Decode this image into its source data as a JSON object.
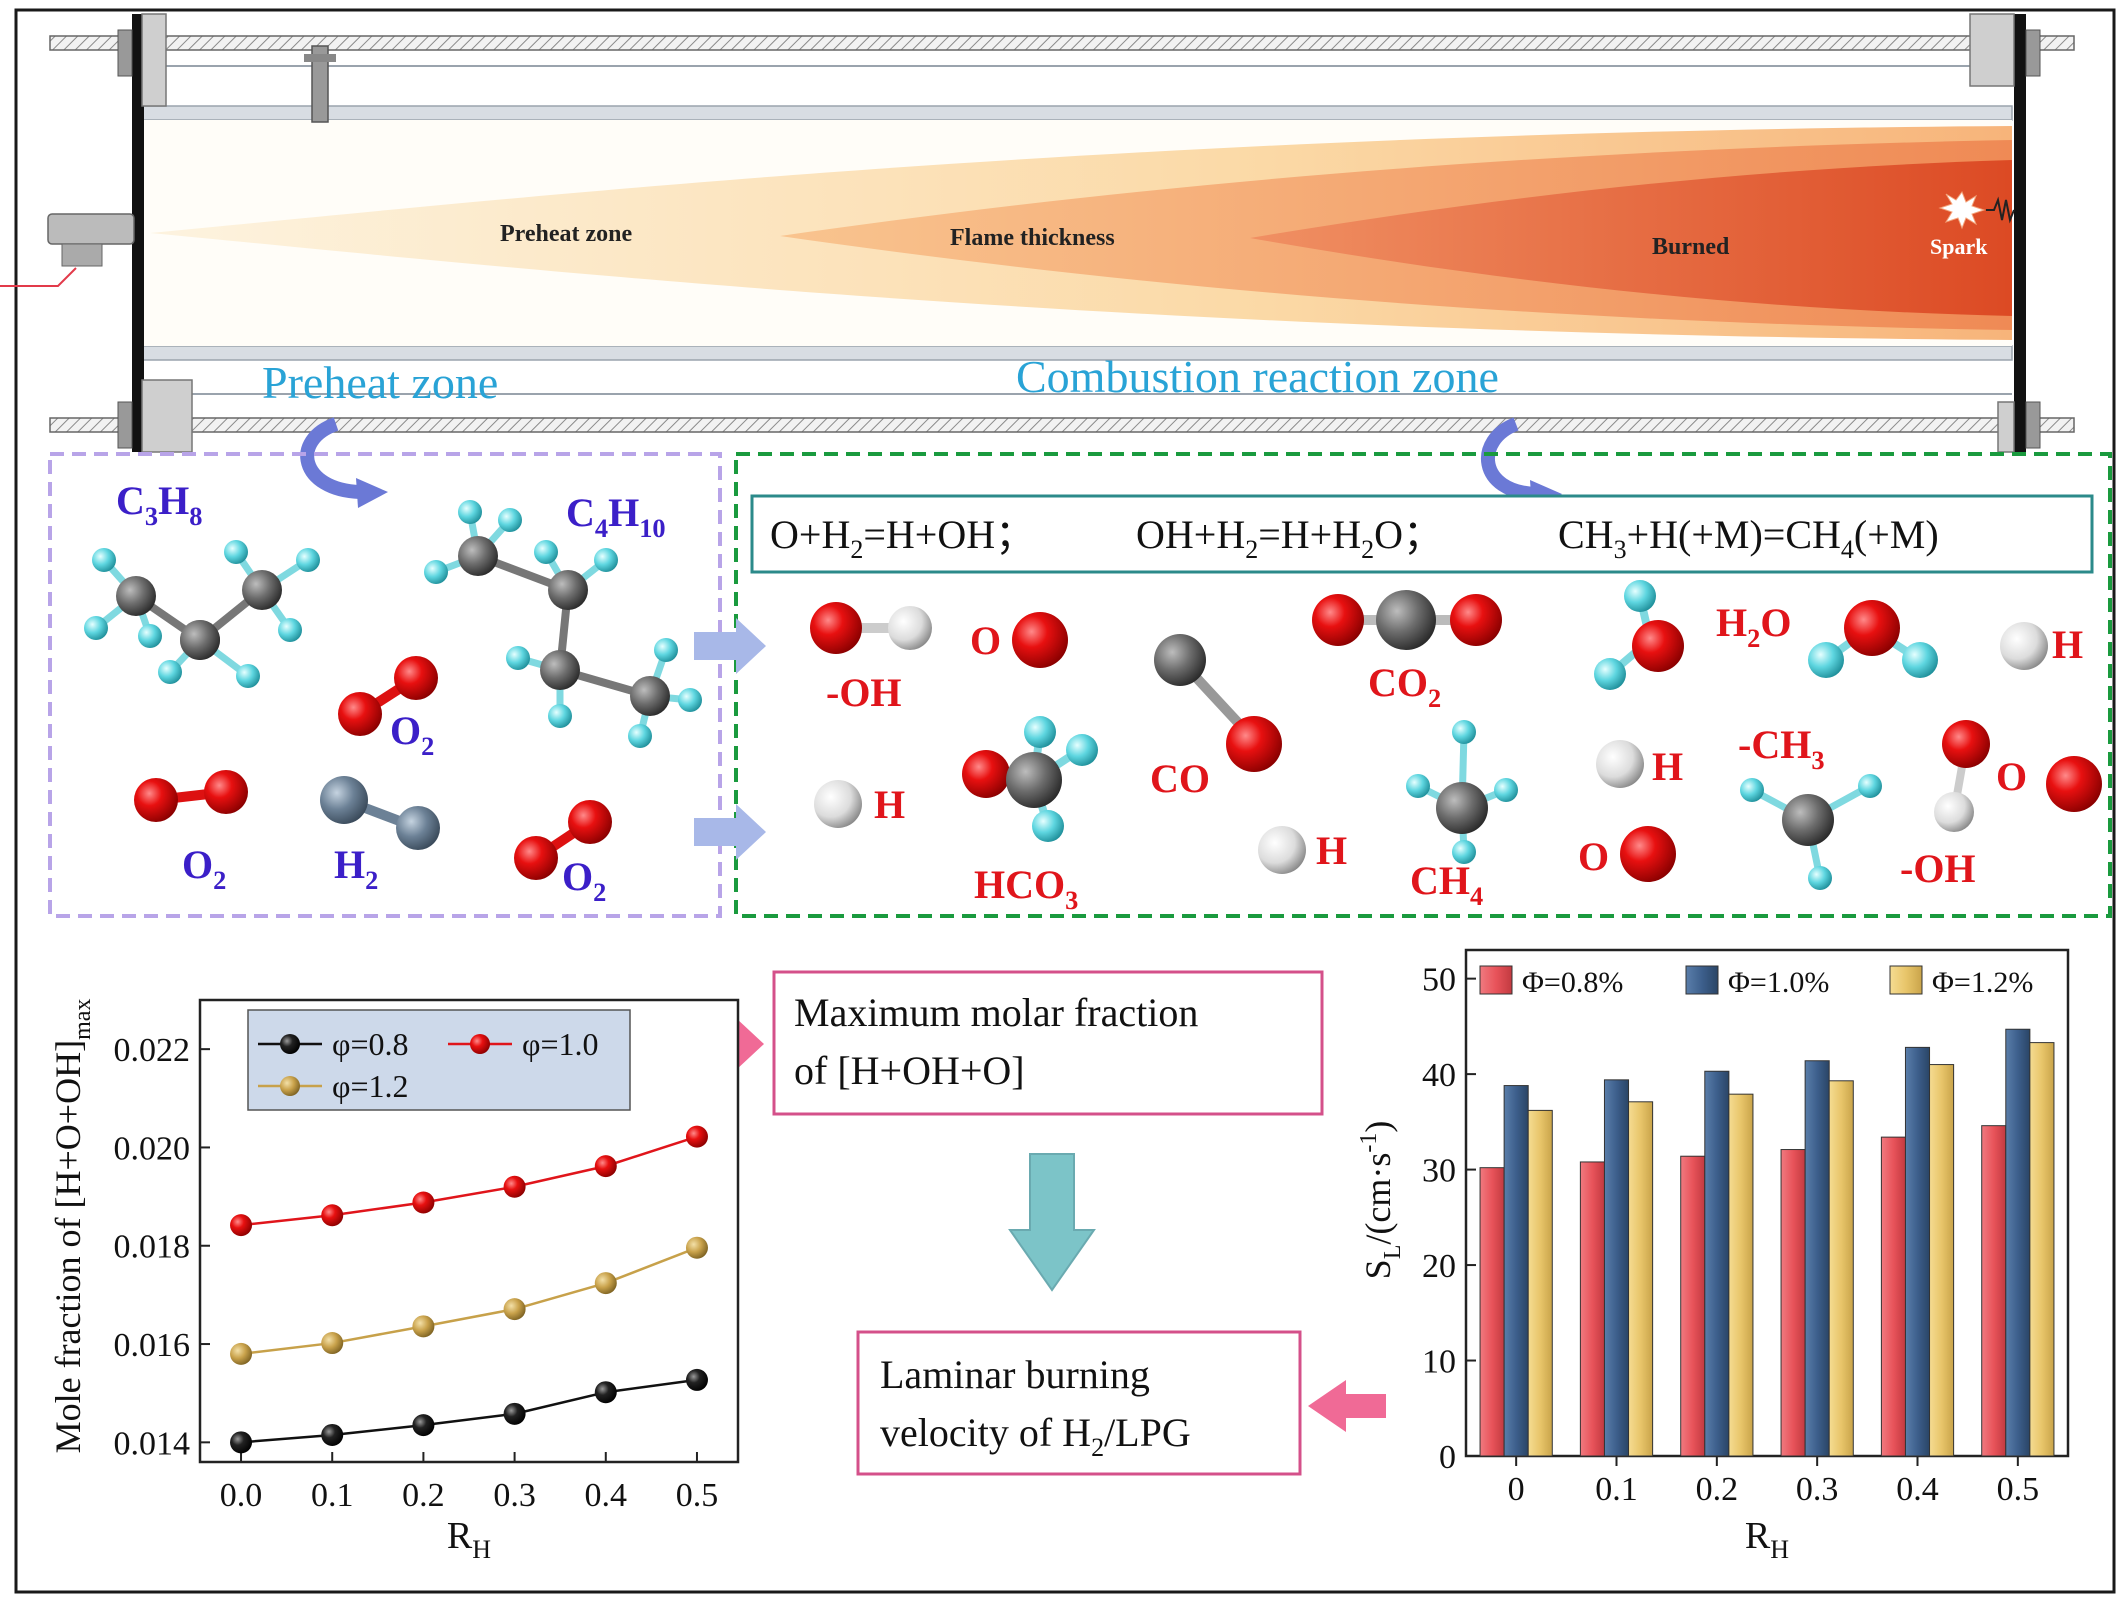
{
  "tube": {
    "preheat_label": "Preheat zone",
    "thickness_label": "Flame thickness",
    "burned_label": "Burned",
    "spark_label": "Spark"
  },
  "zones": {
    "preheat_title": "Preheat zone",
    "combustion_title": "Combustion reaction zone"
  },
  "reactions": {
    "r1": {
      "a": "O+H",
      "a_sub": "2",
      "b": "=H+OH；"
    },
    "r2": {
      "a": "OH+H",
      "a_sub": "2",
      "b": "=H+H",
      "b_sub": "2",
      "c": "O；"
    },
    "r3": {
      "a": "CH",
      "a_sub": "3",
      "b": "+H(+M)=CH",
      "b_sub": "4",
      "c": "(+M)"
    }
  },
  "species_left": [
    {
      "main": "C",
      "parts": [
        [
          "C",
          ""
        ],
        [
          "3",
          "sub"
        ],
        [
          "H",
          ""
        ],
        [
          "8",
          "sub"
        ]
      ]
    },
    {
      "parts": [
        [
          "C",
          ""
        ],
        [
          "4",
          "sub"
        ],
        [
          "H",
          ""
        ],
        [
          "10",
          "sub"
        ]
      ]
    },
    {
      "parts": [
        [
          "O",
          ""
        ],
        [
          "2",
          "sub"
        ]
      ]
    },
    {
      "parts": [
        [
          "O",
          ""
        ],
        [
          "2",
          "sub"
        ]
      ]
    },
    {
      "parts": [
        [
          "H",
          ""
        ],
        [
          "2",
          "sub"
        ]
      ]
    },
    {
      "parts": [
        [
          "O",
          ""
        ],
        [
          "2",
          "sub"
        ]
      ]
    }
  ],
  "species_right": [
    {
      "parts": [
        [
          "-OH",
          ""
        ]
      ]
    },
    {
      "parts": [
        [
          "O",
          ""
        ]
      ]
    },
    {
      "parts": [
        [
          "CO",
          ""
        ],
        [
          "2",
          "sub"
        ]
      ]
    },
    {
      "parts": [
        [
          "H",
          ""
        ],
        [
          "2",
          "sub"
        ],
        [
          "O",
          ""
        ]
      ]
    },
    {
      "parts": [
        [
          "H",
          ""
        ]
      ]
    },
    {
      "parts": [
        [
          "H",
          ""
        ]
      ]
    },
    {
      "parts": [
        [
          "HCO",
          ""
        ],
        [
          "3",
          "sub"
        ]
      ]
    },
    {
      "parts": [
        [
          "CO",
          ""
        ]
      ]
    },
    {
      "parts": [
        [
          "H",
          ""
        ]
      ]
    },
    {
      "parts": [
        [
          "CH",
          ""
        ],
        [
          "4",
          "sub"
        ]
      ]
    },
    {
      "parts": [
        [
          "H",
          ""
        ]
      ]
    },
    {
      "parts": [
        [
          "O",
          ""
        ]
      ]
    },
    {
      "parts": [
        [
          "-CH",
          ""
        ],
        [
          "3",
          "sub"
        ]
      ]
    },
    {
      "parts": [
        [
          "O",
          ""
        ]
      ]
    },
    {
      "parts": [
        [
          "-OH",
          ""
        ]
      ]
    }
  ],
  "flow_boxes": {
    "max_fraction": {
      "line1": "Maximum molar fraction",
      "line2": "of [H+OH+O]"
    },
    "laminar": {
      "line1": "Laminar burning",
      "line2a": "velocity of H",
      "line2_sub": "2",
      "line2b": "/LPG"
    }
  },
  "colors": {
    "species_red": "#e0151b",
    "species_blue": "#3b1fc8",
    "zone_title_blue": "#29a3d6",
    "preheat_border": "#b8a4e8",
    "combustion_border": "#1a9a3e",
    "box_border": "#d4508a",
    "arrow_pink": "#f06a96",
    "arrow_teal": "#7cc4c8",
    "bar_red": "#e8535a",
    "bar_blue": "#3d5f8c",
    "bar_yellow": "#e8c56a"
  },
  "chart_data": [
    {
      "type": "line",
      "xlabel": "R",
      "xlabel_sub": "H",
      "ylabel": "Mole fraction of [H+O+OH]",
      "ylabel_sub": "max",
      "x": [
        0.0,
        0.1,
        0.2,
        0.3,
        0.4,
        0.5
      ],
      "xticks": [
        "0.0",
        "0.1",
        "0.2",
        "0.3",
        "0.4",
        "0.5"
      ],
      "yticks": [
        "0.014",
        "0.016",
        "0.018",
        "0.020",
        "0.022"
      ],
      "ylim": [
        0.0136,
        0.023
      ],
      "legend_placement": "top-left",
      "series": [
        {
          "name": "φ=0.8",
          "color": "#111111",
          "values": [
            0.014,
            0.01415,
            0.01435,
            0.01458,
            0.01502,
            0.01527
          ]
        },
        {
          "name": "φ=1.0",
          "color": "#e0151b",
          "values": [
            0.01842,
            0.01862,
            0.01888,
            0.0192,
            0.01962,
            0.02022
          ]
        },
        {
          "name": "φ=1.2",
          "color": "#c7a14a",
          "values": [
            0.0158,
            0.01602,
            0.01636,
            0.01671,
            0.01724,
            0.01796
          ]
        }
      ]
    },
    {
      "type": "bar",
      "xlabel": "R",
      "xlabel_sub": "H",
      "ylabel": "S",
      "ylabel_sub": "L",
      "ylabel_rest": "/(cm·s",
      "ylabel_sup": "-1",
      "ylabel_end": ")",
      "categories": [
        "0",
        "0.1",
        "0.2",
        "0.3",
        "0.4",
        "0.5"
      ],
      "yticks": [
        "0",
        "10",
        "20",
        "30",
        "40",
        "50"
      ],
      "ylim": [
        0,
        53
      ],
      "legend_placement": "top",
      "series": [
        {
          "name": "Φ=0.8%",
          "color": "#e8535a",
          "values": [
            30.2,
            30.8,
            31.4,
            32.1,
            33.4,
            34.6
          ]
        },
        {
          "name": "Φ=1.0%",
          "color": "#3d5f8c",
          "values": [
            38.8,
            39.4,
            40.3,
            41.4,
            42.8,
            44.7
          ]
        },
        {
          "name": "Φ=1.2%",
          "color": "#e8c56a",
          "values": [
            36.2,
            37.1,
            37.9,
            39.3,
            41.0,
            43.3
          ]
        }
      ]
    }
  ]
}
